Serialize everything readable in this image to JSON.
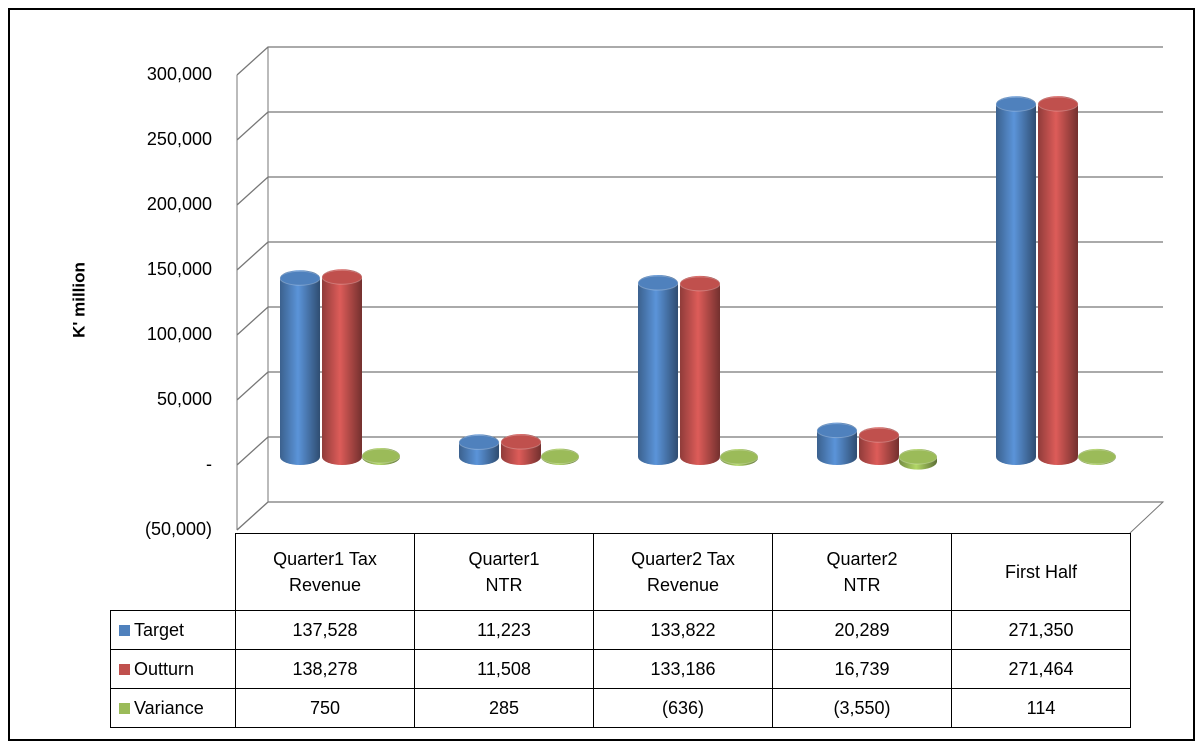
{
  "chart_data": {
    "type": "bar",
    "y_label": "K' million",
    "categories": [
      "Quarter1 Tax\nRevenue",
      "Quarter1\nNTR",
      "Quarter2 Tax\nRevenue",
      "Quarter2\nNTR",
      "First Half"
    ],
    "series": [
      {
        "name": "Target",
        "color": "#4f81bd",
        "values": [
          137528,
          11223,
          133822,
          20289,
          271350
        ],
        "value_labels": [
          "137,528",
          "11,223",
          "133,822",
          "20,289",
          "271,350"
        ]
      },
      {
        "name": "Outturn",
        "color": "#c0504d",
        "values": [
          138278,
          11508,
          133186,
          16739,
          271464
        ],
        "value_labels": [
          "138,278",
          "11,508",
          "133,186",
          "16,739",
          "271,464"
        ]
      },
      {
        "name": "Variance",
        "color": "#9bbb59",
        "values": [
          750,
          285,
          -636,
          -3550,
          114
        ],
        "value_labels": [
          "750",
          "285",
          "(636)",
          "(3,550)",
          "114"
        ]
      }
    ],
    "ylim": [
      -50000,
      300000
    ],
    "yticks": [
      {
        "value": -50000,
        "label": "(50,000)"
      },
      {
        "value": 0,
        "label": "-"
      },
      {
        "value": 50000,
        "label": "50,000"
      },
      {
        "value": 100000,
        "label": "100,000"
      },
      {
        "value": 150000,
        "label": "150,000"
      },
      {
        "value": 200000,
        "label": "200,000"
      },
      {
        "value": 250000,
        "label": "250,000"
      },
      {
        "value": 300000,
        "label": "300,000"
      }
    ],
    "grid": true
  }
}
